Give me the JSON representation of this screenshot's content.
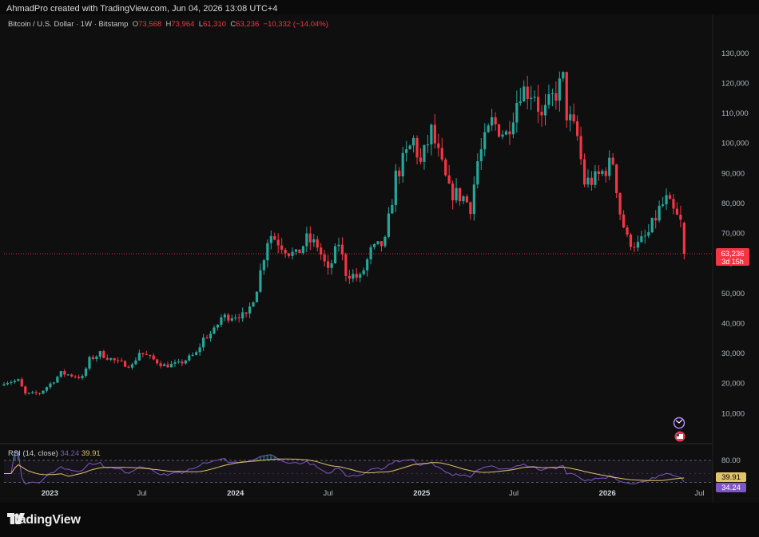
{
  "header": {
    "attribution": "AhmadPro created with TradingView.com, Jun 04, 2026 13:08 UTC+4"
  },
  "legend": {
    "symbol": "Bitcoin / U.S. Dollar · 1W · Bitstamp",
    "o_label": "O",
    "o_value": "73,568",
    "h_label": "H",
    "h_value": "73,964",
    "l_label": "L",
    "l_value": "61,310",
    "c_label": "C",
    "c_value": "63,236",
    "change": "−10,332 (−14.04%)"
  },
  "price_badge": {
    "price": "63,236",
    "countdown": "3d 15h"
  },
  "rsi": {
    "title": "RSI (14, close)",
    "value": "34.24",
    "ma_value": "39.91",
    "level_label": "80.00"
  },
  "colors": {
    "up": "#26a69a",
    "down": "#f23645",
    "rsi_line": "#7e57c2",
    "rsi_ma": "#e0c36a",
    "background": "#0f0f0f"
  },
  "icons": [
    "refresh-icon",
    "calendar-flag-icon"
  ],
  "branding": {
    "logo_text": "TradingView"
  },
  "chart_data": {
    "type": "candlestick",
    "interval": "1W",
    "x_range": [
      "2022-10-03",
      "2026-07-27"
    ],
    "y_range": [
      0,
      135000
    ],
    "y_ticks": [
      130000,
      120000,
      110000,
      100000,
      90000,
      80000,
      70000,
      60000,
      50000,
      40000,
      30000,
      20000,
      10000
    ],
    "y_tick_labels": [
      "130,000",
      "120,000",
      "110,000",
      "100,000",
      "90,000",
      "80,000",
      "70,000",
      "60,000",
      "50,000",
      "40,000",
      "30,000",
      "20,000",
      "10,000"
    ],
    "x_ticks": [
      {
        "label": "2023",
        "date": "2023-01-01",
        "year": true
      },
      {
        "label": "Jul",
        "date": "2023-07-01",
        "year": false
      },
      {
        "label": "2024",
        "date": "2024-01-01",
        "year": true
      },
      {
        "label": "Jul",
        "date": "2024-07-01",
        "year": false
      },
      {
        "label": "2025",
        "date": "2025-01-01",
        "year": true
      },
      {
        "label": "Jul",
        "date": "2025-07-01",
        "year": false
      },
      {
        "label": "2026",
        "date": "2026-01-01",
        "year": true
      },
      {
        "label": "Jul",
        "date": "2026-07-01",
        "year": false
      }
    ],
    "last_close": 63236,
    "close_path": [
      [
        "2022-10-03",
        20500
      ],
      [
        "2022-10-31",
        21000
      ],
      [
        "2022-11-14",
        16500
      ],
      [
        "2022-12-12",
        16800
      ],
      [
        "2023-01-09",
        21000
      ],
      [
        "2023-01-23",
        23500
      ],
      [
        "2023-03-06",
        22000
      ],
      [
        "2023-03-20",
        28000
      ],
      [
        "2023-04-10",
        30000
      ],
      [
        "2023-05-15",
        27000
      ],
      [
        "2023-06-12",
        26000
      ],
      [
        "2023-06-26",
        30500
      ],
      [
        "2023-08-14",
        26000
      ],
      [
        "2023-09-11",
        26500
      ],
      [
        "2023-10-16",
        30000
      ],
      [
        "2023-10-30",
        35000
      ],
      [
        "2023-11-20",
        37500
      ],
      [
        "2023-12-04",
        42000
      ],
      [
        "2024-01-08",
        43000
      ],
      [
        "2024-01-22",
        42000
      ],
      [
        "2024-02-12",
        52000
      ],
      [
        "2024-03-04",
        68000
      ],
      [
        "2024-03-11",
        69500
      ],
      [
        "2024-04-15",
        64000
      ],
      [
        "2024-04-29",
        62500
      ],
      [
        "2024-05-20",
        68000
      ],
      [
        "2024-06-10",
        66000
      ],
      [
        "2024-07-01",
        57000
      ],
      [
        "2024-07-22",
        67000
      ],
      [
        "2024-08-05",
        57000
      ],
      [
        "2024-09-02",
        55000
      ],
      [
        "2024-09-23",
        64000
      ],
      [
        "2024-10-21",
        67000
      ],
      [
        "2024-11-11",
        89000
      ],
      [
        "2024-12-16",
        101000
      ],
      [
        "2024-12-30",
        93000
      ],
      [
        "2025-01-20",
        104000
      ],
      [
        "2025-02-24",
        84000
      ],
      [
        "2025-03-24",
        82000
      ],
      [
        "2025-04-07",
        79000
      ],
      [
        "2025-04-21",
        94000
      ],
      [
        "2025-05-19",
        107000
      ],
      [
        "2025-06-16",
        103000
      ],
      [
        "2025-07-14",
        118000
      ],
      [
        "2025-08-11",
        117000
      ],
      [
        "2025-08-25",
        108000
      ],
      [
        "2025-09-15",
        115000
      ],
      [
        "2025-10-06",
        121000
      ],
      [
        "2025-10-13",
        110000
      ],
      [
        "2025-11-03",
        102000
      ],
      [
        "2025-11-17",
        87000
      ],
      [
        "2025-12-08",
        88000
      ],
      [
        "2026-01-12",
        94000
      ],
      [
        "2026-01-26",
        77000
      ],
      [
        "2026-02-09",
        68000
      ],
      [
        "2026-03-02",
        66000
      ],
      [
        "2026-03-23",
        70000
      ],
      [
        "2026-04-13",
        78000
      ],
      [
        "2026-04-27",
        81000
      ],
      [
        "2026-05-11",
        77000
      ],
      [
        "2026-05-25",
        73500
      ],
      [
        "2026-06-01",
        63236
      ]
    ],
    "rsi_range": [
      20,
      100
    ],
    "rsi_levels": [
      80,
      70,
      30
    ]
  }
}
